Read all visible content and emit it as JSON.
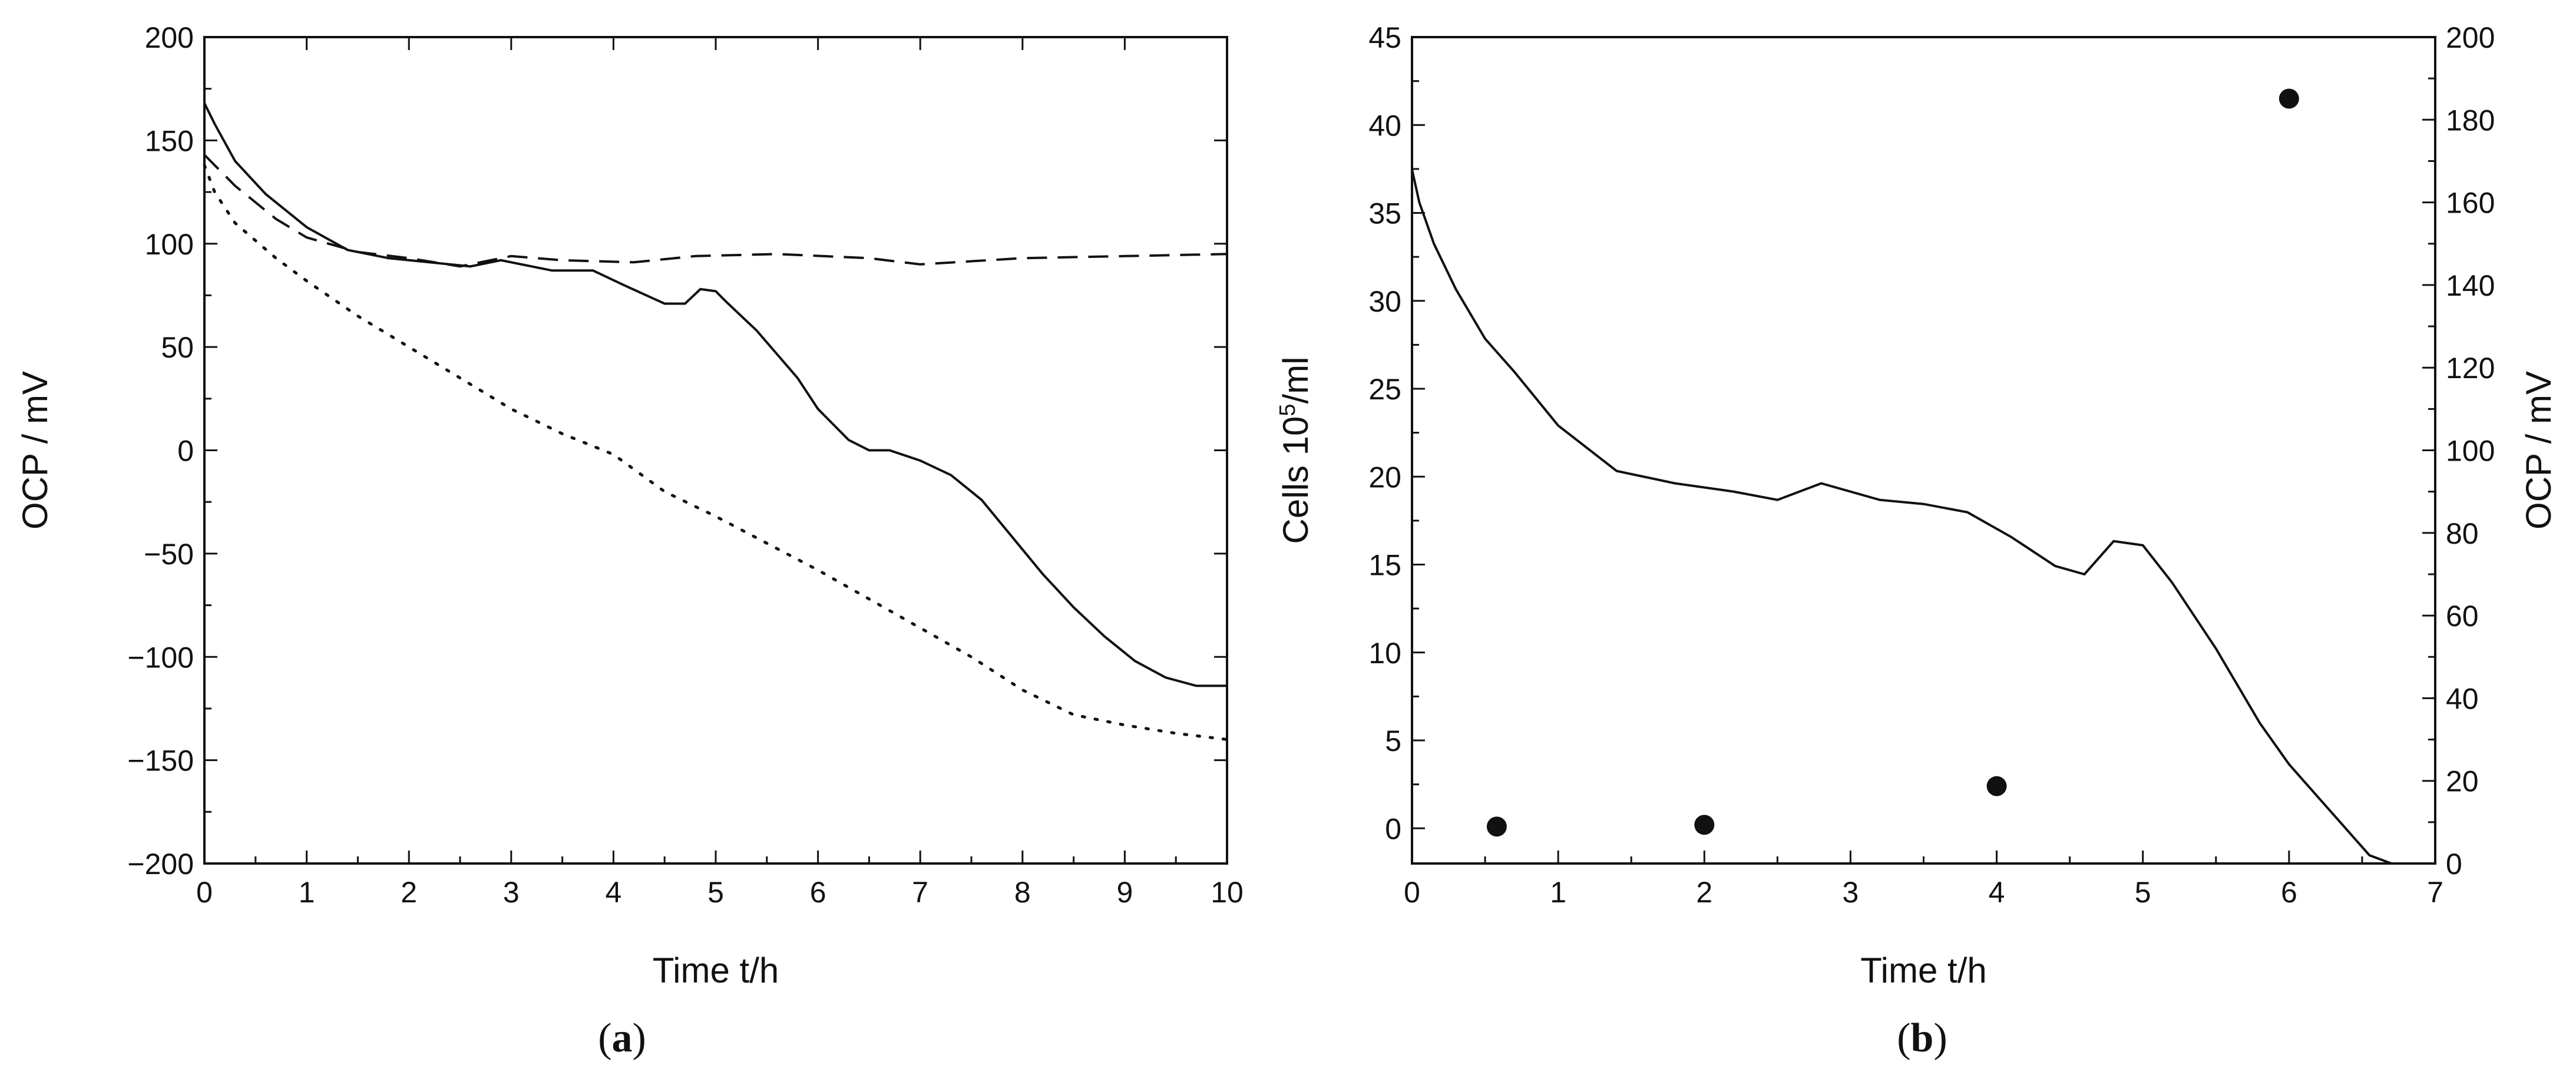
{
  "chart_data": [
    {
      "type": "line",
      "panel_label": "a",
      "xlabel": "Time t/h",
      "ylabel": "OCP / mV",
      "xlim": [
        0,
        10
      ],
      "ylim": [
        -200,
        200
      ],
      "x_ticks": [
        0,
        1,
        2,
        3,
        4,
        5,
        6,
        7,
        8,
        9,
        10
      ],
      "y_ticks": [
        200,
        150,
        100,
        50,
        0,
        -50,
        -100,
        -150,
        -200
      ],
      "y_tick_labels": [
        "200",
        "150",
        "100",
        "50",
        "0",
        "−50",
        "−100",
        "−150",
        "−200"
      ],
      "series": [
        {
          "name": "solid",
          "style": "solid",
          "points": [
            [
              0,
              168
            ],
            [
              0.1,
              158
            ],
            [
              0.3,
              140
            ],
            [
              0.6,
              124
            ],
            [
              1,
              108
            ],
            [
              1.4,
              97
            ],
            [
              1.8,
              93
            ],
            [
              2.2,
              91
            ],
            [
              2.6,
              89
            ],
            [
              2.9,
              92
            ],
            [
              3.2,
              89
            ],
            [
              3.4,
              87
            ],
            [
              3.8,
              87
            ],
            [
              4.1,
              80
            ],
            [
              4.5,
              71
            ],
            [
              4.7,
              71
            ],
            [
              4.85,
              78
            ],
            [
              5,
              77
            ],
            [
              5.1,
              72
            ],
            [
              5.4,
              58
            ],
            [
              5.8,
              35
            ],
            [
              6,
              20
            ],
            [
              6.3,
              5
            ],
            [
              6.5,
              0
            ],
            [
              6.7,
              0
            ],
            [
              7,
              -5
            ],
            [
              7.3,
              -12
            ],
            [
              7.6,
              -24
            ],
            [
              7.9,
              -42
            ],
            [
              8.2,
              -60
            ],
            [
              8.5,
              -76
            ],
            [
              8.8,
              -90
            ],
            [
              9.1,
              -102
            ],
            [
              9.4,
              -110
            ],
            [
              9.7,
              -114
            ],
            [
              10,
              -114
            ]
          ]
        },
        {
          "name": "dashed",
          "style": "dashed",
          "points": [
            [
              0,
              143
            ],
            [
              0.3,
              128
            ],
            [
              0.7,
              112
            ],
            [
              1,
              103
            ],
            [
              1.5,
              96
            ],
            [
              2,
              93
            ],
            [
              2.5,
              89
            ],
            [
              3,
              94
            ],
            [
              3.5,
              92
            ],
            [
              4.2,
              91
            ],
            [
              4.8,
              94
            ],
            [
              5.6,
              95
            ],
            [
              6.5,
              93
            ],
            [
              7,
              90
            ],
            [
              8,
              93
            ],
            [
              9,
              94
            ],
            [
              10,
              95
            ]
          ]
        },
        {
          "name": "dotted",
          "style": "dotted",
          "points": [
            [
              0,
              138
            ],
            [
              0.1,
              125
            ],
            [
              0.3,
              110
            ],
            [
              0.7,
              93
            ],
            [
              1,
              82
            ],
            [
              1.5,
              65
            ],
            [
              2,
              50
            ],
            [
              2.5,
              35
            ],
            [
              3,
              20
            ],
            [
              3.5,
              8
            ],
            [
              4,
              -2
            ],
            [
              4.5,
              -20
            ],
            [
              5,
              -32
            ],
            [
              5.5,
              -45
            ],
            [
              6,
              -58
            ],
            [
              6.5,
              -72
            ],
            [
              7,
              -86
            ],
            [
              7.5,
              -100
            ],
            [
              8,
              -116
            ],
            [
              8.5,
              -128
            ],
            [
              9,
              -133
            ],
            [
              9.5,
              -137
            ],
            [
              10,
              -140
            ]
          ]
        }
      ]
    },
    {
      "type": "line+scatter",
      "panel_label": "b",
      "xlabel": "Time t/h",
      "ylabel_left": "Cells 10",
      "ylabel_left_sup": "5",
      "ylabel_left_suffix": "/ml",
      "ylabel_right": "OCP / mV",
      "xlim": [
        0,
        7
      ],
      "ylim_left": [
        -2,
        45
      ],
      "ylim_right": [
        0,
        200
      ],
      "x_ticks": [
        0,
        1,
        2,
        3,
        4,
        5,
        6,
        7
      ],
      "y_ticks_left": [
        0,
        5,
        10,
        15,
        20,
        25,
        30,
        35,
        40,
        45
      ],
      "y_ticks_right": [
        0,
        20,
        40,
        60,
        80,
        100,
        120,
        140,
        160,
        180,
        200
      ],
      "series": [
        {
          "name": "OCP (solid, right axis)",
          "style": "solid",
          "axis": "right",
          "points": [
            [
              0,
              168
            ],
            [
              0.05,
              160
            ],
            [
              0.15,
              150
            ],
            [
              0.3,
              139
            ],
            [
              0.5,
              127
            ],
            [
              0.7,
              119
            ],
            [
              1,
              106
            ],
            [
              1.4,
              95
            ],
            [
              1.8,
              92
            ],
            [
              2.2,
              90
            ],
            [
              2.5,
              88
            ],
            [
              2.8,
              92
            ],
            [
              3.2,
              88
            ],
            [
              3.5,
              87
            ],
            [
              3.8,
              85
            ],
            [
              4.1,
              79
            ],
            [
              4.4,
              72
            ],
            [
              4.6,
              70
            ],
            [
              4.8,
              78
            ],
            [
              5,
              77
            ],
            [
              5.2,
              68
            ],
            [
              5.5,
              52
            ],
            [
              5.8,
              34
            ],
            [
              6,
              24
            ],
            [
              6.2,
              16
            ],
            [
              6.4,
              8
            ],
            [
              6.55,
              2
            ],
            [
              6.7,
              0
            ],
            [
              7,
              0
            ]
          ]
        },
        {
          "name": "Cells (dots, left axis)",
          "style": "markers",
          "axis": "left",
          "points": [
            [
              0.58,
              0.1
            ],
            [
              2,
              0.2
            ],
            [
              4,
              2.4
            ],
            [
              6,
              41.5
            ]
          ]
        }
      ]
    }
  ]
}
